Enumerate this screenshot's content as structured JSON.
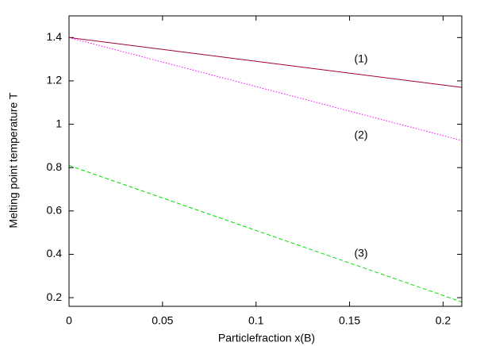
{
  "chart_data": {
    "type": "line",
    "xlabel": "Particlefraction x(B)",
    "ylabel": "Melting point temperature T",
    "x": [
      0,
      0.21
    ],
    "series": [
      {
        "color": "#9b0036",
        "dash": "solid",
        "values": [
          1.4,
          1.17
        ]
      },
      {
        "color": "#ff00ff",
        "dash": "dotted",
        "values": [
          1.4,
          0.925
        ]
      },
      {
        "color": "#00dd00",
        "dash": "dashed",
        "values": [
          0.81,
          0.18
        ]
      }
    ],
    "annotations": [
      "(1)",
      "(2)",
      "(3)"
    ],
    "xlim": [
      0,
      0.21
    ],
    "ylim": [
      0.16,
      1.5
    ],
    "xticks": [
      0,
      0.05,
      0.1,
      0.15,
      0.2
    ],
    "yticks": [
      0.2,
      0.4,
      0.6,
      0.8,
      1,
      1.2,
      1.4
    ],
    "grid": false
  }
}
